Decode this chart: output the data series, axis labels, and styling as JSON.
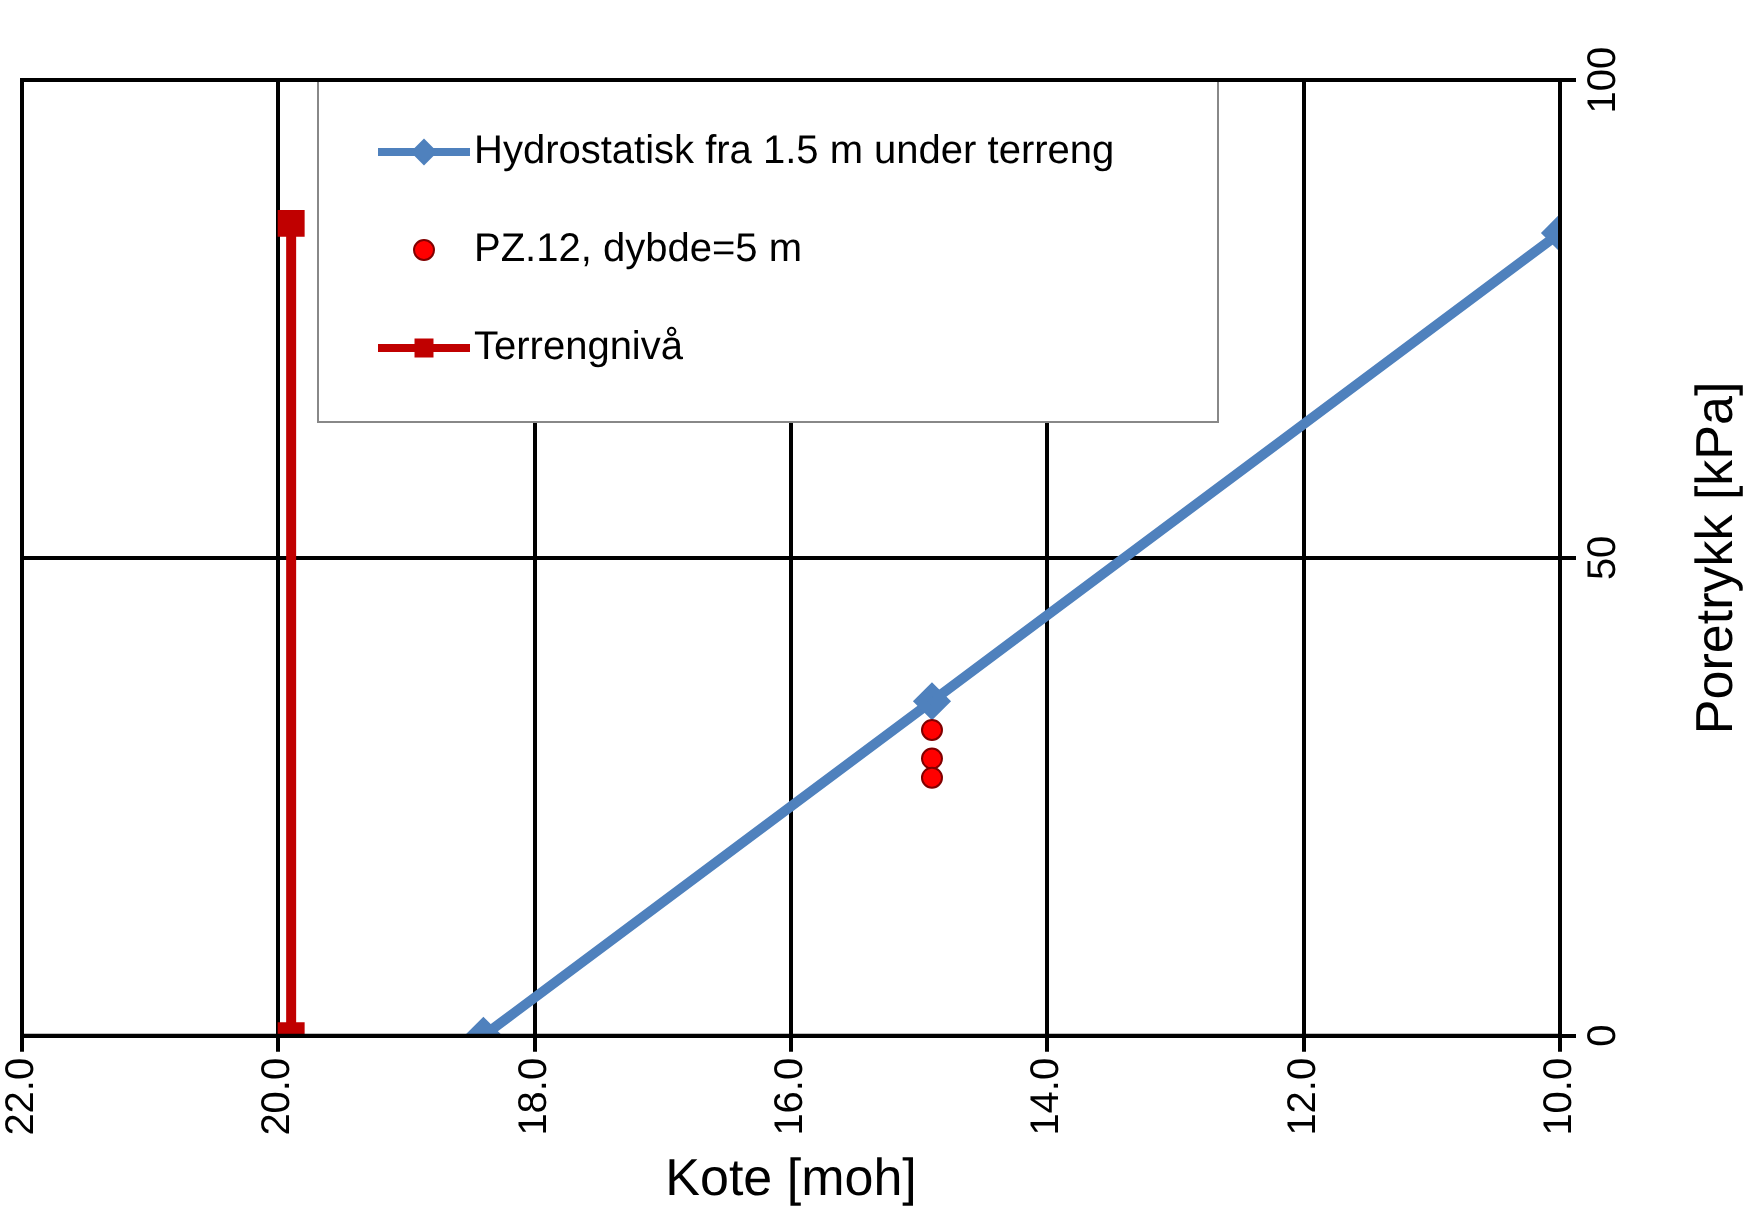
{
  "chart_data": {
    "type": "line",
    "xlabel": "Kote [moh]",
    "ylabel": "Poretrykk [kPa]",
    "xlim": [
      22,
      10
    ],
    "xticks": [
      {
        "value": 22,
        "label": "22.0"
      },
      {
        "value": 20,
        "label": "20.0"
      },
      {
        "value": 18,
        "label": "18.0"
      },
      {
        "value": 16,
        "label": "16.0"
      },
      {
        "value": 14,
        "label": "14.0"
      },
      {
        "value": 12,
        "label": "12.0"
      },
      {
        "value": 10,
        "label": "10.0"
      }
    ],
    "ylim": [
      0,
      100
    ],
    "yticks": [
      0,
      50,
      100
    ],
    "grid": true,
    "legend": "top",
    "series": [
      {
        "name": "Hydrostatisk fra 1.5 m under terreng",
        "color": "#4f81bd",
        "marker": "diamond",
        "x": [
          18.4,
          14.9,
          10
        ],
        "values": [
          0,
          35,
          84
        ]
      },
      {
        "name": "PZ.12, dybde=5 m",
        "type": "scatter",
        "color": "#ff0000",
        "marker": "circle",
        "x": [
          14.9,
          14.9,
          14.9
        ],
        "values": [
          32,
          29,
          27
        ]
      },
      {
        "name": "Terrengnivå",
        "color": "#c00000",
        "marker": "square",
        "x": [
          19.9,
          19.9
        ],
        "values": [
          0,
          85
        ]
      }
    ]
  }
}
